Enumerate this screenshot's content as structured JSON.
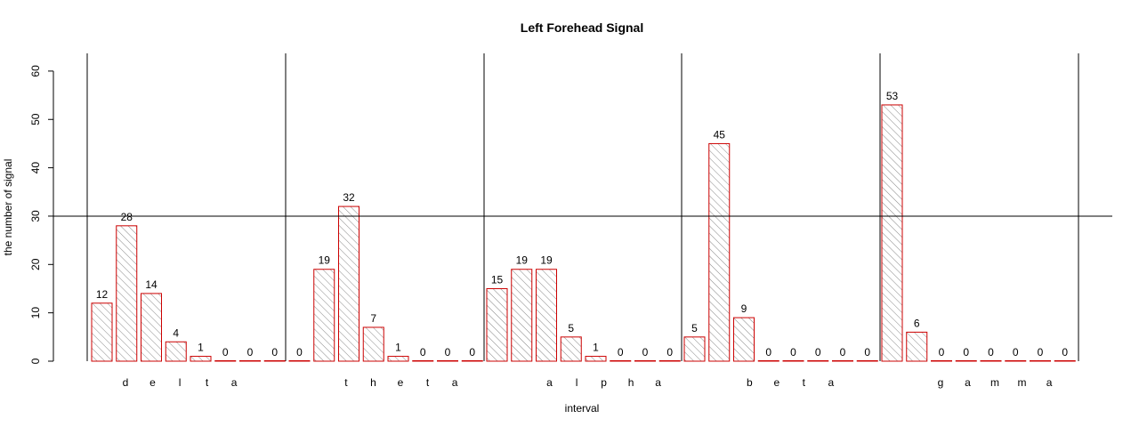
{
  "chart_data": {
    "type": "bar",
    "title": "Left Forehead Signal",
    "xlabel": "interval",
    "ylabel": "the number of signal",
    "ylim": [
      0,
      60
    ],
    "yticks": [
      0,
      10,
      20,
      30,
      40,
      50,
      60
    ],
    "reference_line": 30,
    "bar_fill": "diagonal hatch, grey",
    "bar_border_color": "#cc0000",
    "groups": [
      {
        "letters": [
          "d",
          "e",
          "l",
          "t",
          "a"
        ],
        "values": [
          12,
          28,
          14,
          4,
          1,
          0,
          0,
          0
        ]
      },
      {
        "letters": [
          "t",
          "h",
          "e",
          "t",
          "a"
        ],
        "values": [
          0,
          19,
          32,
          7,
          1,
          0,
          0,
          0
        ]
      },
      {
        "letters": [
          "a",
          "l",
          "p",
          "h",
          "a"
        ],
        "values": [
          15,
          19,
          19,
          5,
          1,
          0,
          0,
          0
        ]
      },
      {
        "letters": [
          "b",
          "e",
          "t",
          "a"
        ],
        "values": [
          5,
          45,
          9,
          0,
          0,
          0,
          0,
          0
        ]
      },
      {
        "letters": [
          "g",
          "a",
          "m",
          "m",
          "a"
        ],
        "values": [
          53,
          6,
          0,
          0,
          0,
          0,
          0,
          0
        ]
      }
    ]
  }
}
